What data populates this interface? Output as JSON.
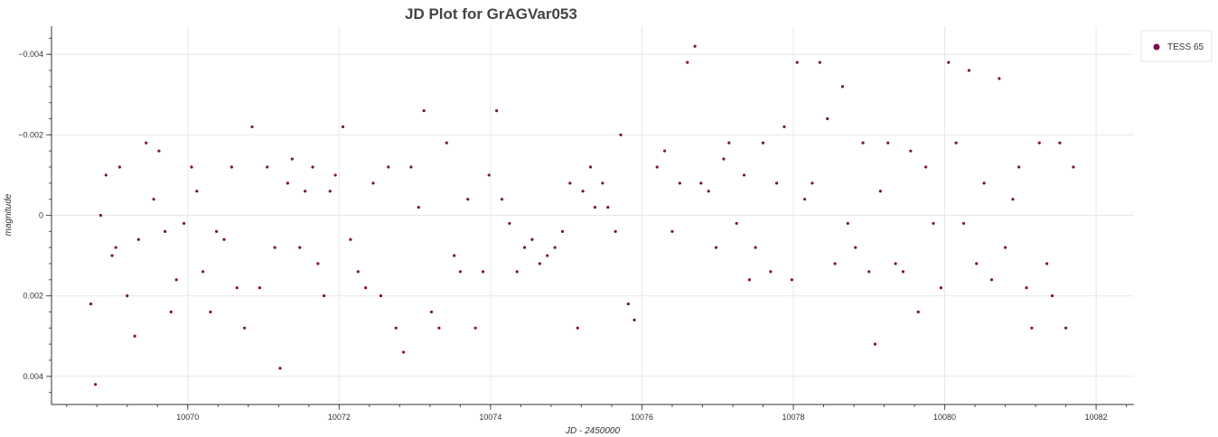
{
  "chart_data": {
    "type": "scatter",
    "title": "JD Plot for GrAGVar053",
    "xlabel": "JD - 2450000",
    "ylabel": "magnitude",
    "xlim": [
      10068.2,
      10082.5
    ],
    "ylim": [
      -0.0047,
      0.0047
    ],
    "y_inverted": true,
    "x_ticks": [
      10070,
      10072,
      10074,
      10076,
      10078,
      10080,
      10082
    ],
    "y_ticks": [
      -0.004,
      -0.002,
      0,
      0.002,
      0.004
    ],
    "y_tick_labels": [
      "−0.004",
      "−0.002",
      "0",
      "0.002",
      "0.004"
    ],
    "grid": true,
    "legend_position": "top-right",
    "series": [
      {
        "name": "TESS 65",
        "color": "#7b0f4f",
        "x": [
          10068.72,
          10068.78,
          10068.85,
          10068.92,
          10069.0,
          10069.05,
          10069.1,
          10069.2,
          10069.3,
          10069.35,
          10069.45,
          10069.55,
          10069.62,
          10069.7,
          10069.78,
          10069.85,
          10069.95,
          10070.05,
          10070.12,
          10070.2,
          10070.3,
          10070.38,
          10070.48,
          10070.58,
          10070.65,
          10070.75,
          10070.85,
          10070.95,
          10071.05,
          10071.15,
          10071.22,
          10071.32,
          10071.38,
          10071.48,
          10071.55,
          10071.65,
          10071.72,
          10071.8,
          10071.88,
          10071.95,
          10072.05,
          10072.15,
          10072.25,
          10072.35,
          10072.45,
          10072.55,
          10072.65,
          10072.75,
          10072.85,
          10072.95,
          10073.05,
          10073.12,
          10073.22,
          10073.32,
          10073.42,
          10073.52,
          10073.6,
          10073.7,
          10073.8,
          10073.9,
          10073.98,
          10074.08,
          10074.15,
          10074.25,
          10074.35,
          10074.45,
          10074.55,
          10074.65,
          10074.75,
          10074.85,
          10074.95,
          10075.05,
          10075.15,
          10075.22,
          10075.32,
          10075.38,
          10075.48,
          10075.55,
          10075.65,
          10075.72,
          10075.82,
          10075.9,
          10076.2,
          10076.3,
          10076.4,
          10076.5,
          10076.6,
          10076.7,
          10076.78,
          10076.88,
          10076.98,
          10077.08,
          10077.15,
          10077.25,
          10077.35,
          10077.42,
          10077.5,
          10077.6,
          10077.7,
          10077.78,
          10077.88,
          10077.98,
          10078.05,
          10078.15,
          10078.25,
          10078.35,
          10078.45,
          10078.55,
          10078.65,
          10078.72,
          10078.82,
          10078.92,
          10079.0,
          10079.08,
          10079.15,
          10079.25,
          10079.35,
          10079.45,
          10079.55,
          10079.65,
          10079.75,
          10079.85,
          10079.95,
          10080.05,
          10080.15,
          10080.25,
          10080.32,
          10080.42,
          10080.52,
          10080.62,
          10080.72,
          10080.8,
          10080.9,
          10080.98,
          10081.08,
          10081.15,
          10081.25,
          10081.35,
          10081.42,
          10081.52,
          10081.6,
          10081.7
        ],
        "y": [
          0.0022,
          0.0042,
          0.0,
          -0.001,
          0.001,
          0.0008,
          -0.0012,
          0.002,
          0.003,
          0.0006,
          -0.0018,
          -0.0004,
          -0.0016,
          0.0004,
          0.0024,
          0.0016,
          0.0002,
          -0.0012,
          -0.0006,
          0.0014,
          0.0024,
          0.0004,
          0.0006,
          -0.0012,
          0.0018,
          0.0028,
          -0.0022,
          0.0018,
          -0.0012,
          0.0008,
          0.0038,
          -0.0008,
          -0.0014,
          0.0008,
          -0.0006,
          -0.0012,
          0.0012,
          0.002,
          -0.0006,
          -0.001,
          -0.0022,
          0.0006,
          0.0014,
          0.0018,
          -0.0008,
          0.002,
          -0.0012,
          0.0028,
          0.0034,
          -0.0012,
          -0.0002,
          -0.0026,
          0.0024,
          0.0028,
          -0.0018,
          0.001,
          0.0014,
          -0.0004,
          0.0028,
          0.0014,
          -0.001,
          -0.0026,
          -0.0004,
          0.0002,
          0.0014,
          0.0008,
          0.0006,
          0.0012,
          0.001,
          0.0008,
          0.0004,
          -0.0008,
          0.0028,
          -0.0006,
          -0.0012,
          -0.0002,
          -0.0008,
          -0.0002,
          0.0004,
          -0.002,
          0.0022,
          0.0026,
          -0.0012,
          -0.0016,
          0.0004,
          -0.0008,
          -0.0038,
          -0.0042,
          -0.0008,
          -0.0006,
          0.0008,
          -0.0014,
          -0.0018,
          0.0002,
          -0.001,
          0.0016,
          0.0008,
          -0.0018,
          0.0014,
          -0.0008,
          -0.0022,
          0.0016,
          -0.0038,
          -0.0004,
          -0.0008,
          -0.0038,
          -0.0024,
          0.0012,
          -0.0032,
          0.0002,
          0.0008,
          -0.0018,
          0.0014,
          0.0032,
          -0.0006,
          -0.0018,
          0.0012,
          0.0014,
          -0.0016,
          0.0024,
          -0.0012,
          0.0002,
          0.0018,
          -0.0038,
          -0.0018,
          0.0002,
          -0.0036,
          0.0012,
          -0.0008,
          0.0016,
          -0.0034,
          0.0008,
          -0.0004,
          -0.0012,
          0.0018,
          0.0028,
          -0.0018,
          0.0012,
          0.002,
          -0.0018,
          0.0028,
          -0.0012
        ]
      }
    ]
  }
}
